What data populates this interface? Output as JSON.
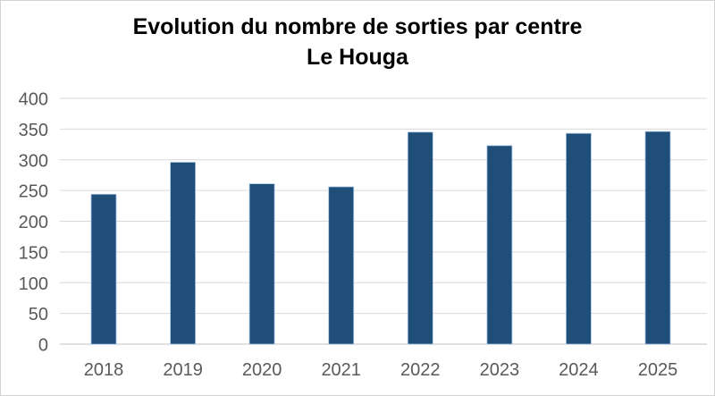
{
  "chart_data": {
    "type": "bar",
    "title": "Evolution du nombre de sorties par centre",
    "subtitle": "Le Houga",
    "categories": [
      "2018",
      "2019",
      "2020",
      "2021",
      "2022",
      "2023",
      "2024",
      "2025"
    ],
    "values": [
      244,
      296,
      261,
      256,
      345,
      323,
      343,
      346
    ],
    "xlabel": "",
    "ylabel": "",
    "ylim": [
      0,
      400
    ],
    "ytick_step": 50,
    "ytick_labels": [
      "0",
      "50",
      "100",
      "150",
      "200",
      "250",
      "300",
      "350",
      "400"
    ],
    "grid": true,
    "legend": false,
    "bar_color": "#1F4E79",
    "bar_edge_color": "#A9C4E4",
    "gridline_color": "#D9D9D9",
    "axis_line_color": "#C0C0C0",
    "tick_label_color": "#595959",
    "title_color": "#000000",
    "background_color": "#FFFFFF",
    "frame_border_color": "#D2D2D2"
  }
}
